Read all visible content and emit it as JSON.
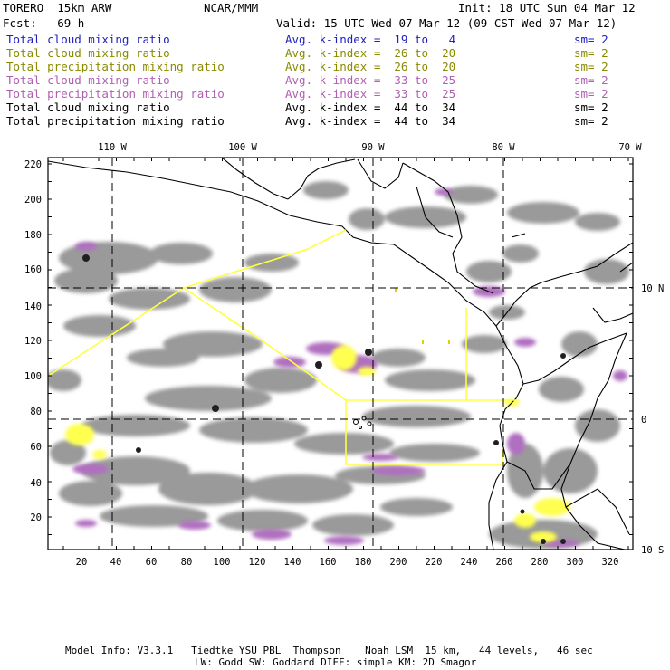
{
  "header": {
    "run": "TORERO  15km ARW",
    "org": "NCAR/MMM",
    "init": "Init: 18 UTC Sun 04 Mar 12",
    "fcst": "Fcst:   69 h",
    "valid": "Valid: 15 UTC Wed 07 Mar 12 (09 CST Wed 07 Mar 12)"
  },
  "legend": [
    {
      "field": "Total cloud mixing ratio",
      "k": "Avg. k-index =  19 to   4",
      "sm": "sm= 2",
      "color": "#2020c0"
    },
    {
      "field": "Total cloud mixing ratio",
      "k": "Avg. k-index =  26 to  20",
      "sm": "sm= 2",
      "color": "#8a8a00"
    },
    {
      "field": "Total precipitation mixing ratio",
      "k": "Avg. k-index =  26 to  20",
      "sm": "sm= 2",
      "color": "#8a8a00"
    },
    {
      "field": "Total cloud mixing ratio",
      "k": "Avg. k-index =  33 to  25",
      "sm": "sm= 2",
      "color": "#b060b0"
    },
    {
      "field": "Total precipitation mixing ratio",
      "k": "Avg. k-index =  33 to  25",
      "sm": "sm= 2",
      "color": "#b060b0"
    },
    {
      "field": "Total cloud mixing ratio",
      "k": "Avg. k-index =  44 to  34",
      "sm": "sm= 2",
      "color": "#000000"
    },
    {
      "field": "Total precipitation mixing ratio",
      "k": "Avg. k-index =  44 to  34",
      "sm": "sm= 2",
      "color": "#000000"
    }
  ],
  "map": {
    "top_lon_labels": [
      "110 W",
      "100 W",
      "90 W",
      "80 W",
      "70 W"
    ],
    "right_lat_labels": [
      "10 N",
      "0",
      "10 S"
    ],
    "left_grid_labels": [
      "220",
      "200",
      "180",
      "160",
      "140",
      "120",
      "100",
      "80",
      "60",
      "40",
      "20"
    ],
    "bottom_grid_labels": [
      "20",
      "40",
      "60",
      "80",
      "100",
      "120",
      "140",
      "160",
      "180",
      "200",
      "220",
      "240",
      "260",
      "280",
      "300",
      "320"
    ],
    "colors": {
      "cloud_gray": "#9a9a9a",
      "purple": "#b070c0",
      "yellow": "#ffff40",
      "dark": "#202020",
      "track": "#ffff40"
    }
  },
  "footer": {
    "line1": "Model Info: V3.3.1   Tiedtke YSU PBL  Thompson    Noah LSM  15 km,   44 levels,   46 sec",
    "line2": "LW: Godd SW: Goddard DIFF: simple KM: 2D Smagor"
  }
}
